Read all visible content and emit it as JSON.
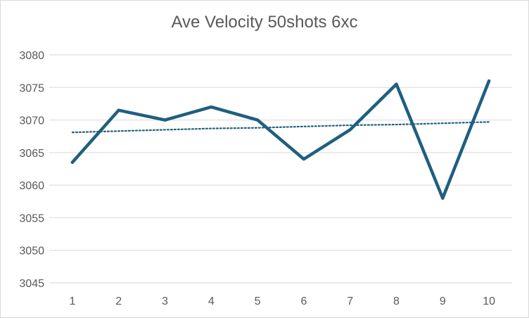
{
  "chart_data": {
    "type": "line",
    "title": "Ave Velocity 50shots  6xc",
    "xlabel": "",
    "ylabel": "",
    "x": [
      1,
      2,
      3,
      4,
      5,
      6,
      7,
      8,
      9,
      10
    ],
    "series": [
      {
        "values": [
          3063.5,
          3071.5,
          3070,
          3072,
          3070,
          3064,
          3068.5,
          3075.5,
          3058,
          3076
        ],
        "color": "#1f5f7f"
      }
    ],
    "trendline": {
      "type": "linear",
      "values": [
        3068.1,
        3068.3,
        3068.5,
        3068.7,
        3068.8,
        3069.0,
        3069.2,
        3069.3,
        3069.5,
        3069.7
      ],
      "style": "dotted",
      "color": "#1f5f7f"
    },
    "ylim": [
      3045,
      3080
    ],
    "yticks": [
      3045,
      3050,
      3055,
      3060,
      3065,
      3070,
      3075,
      3080
    ],
    "grid": true,
    "legend": "none"
  }
}
